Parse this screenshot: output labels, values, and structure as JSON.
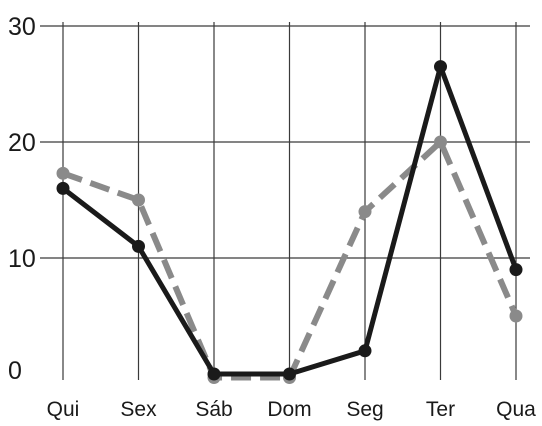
{
  "chart_data": {
    "type": "line",
    "categories": [
      "Qui",
      "Sex",
      "Sáb",
      "Dom",
      "Seg",
      "Ter",
      "Qua"
    ],
    "series": [
      {
        "values": [
          16,
          11,
          0,
          0,
          2,
          26.5,
          9
        ],
        "color": "#1a1a1a",
        "line_style": "solid",
        "marker": "circle"
      },
      {
        "values": [
          17.3,
          15,
          -0.3,
          -0.3,
          14,
          20,
          5
        ],
        "color": "#8a8a8a",
        "line_style": "dashed",
        "marker": "circle"
      }
    ],
    "y_ticks": [
      0,
      10,
      20,
      30
    ],
    "ylim": [
      0,
      30
    ],
    "grid": true,
    "legend": "none"
  }
}
